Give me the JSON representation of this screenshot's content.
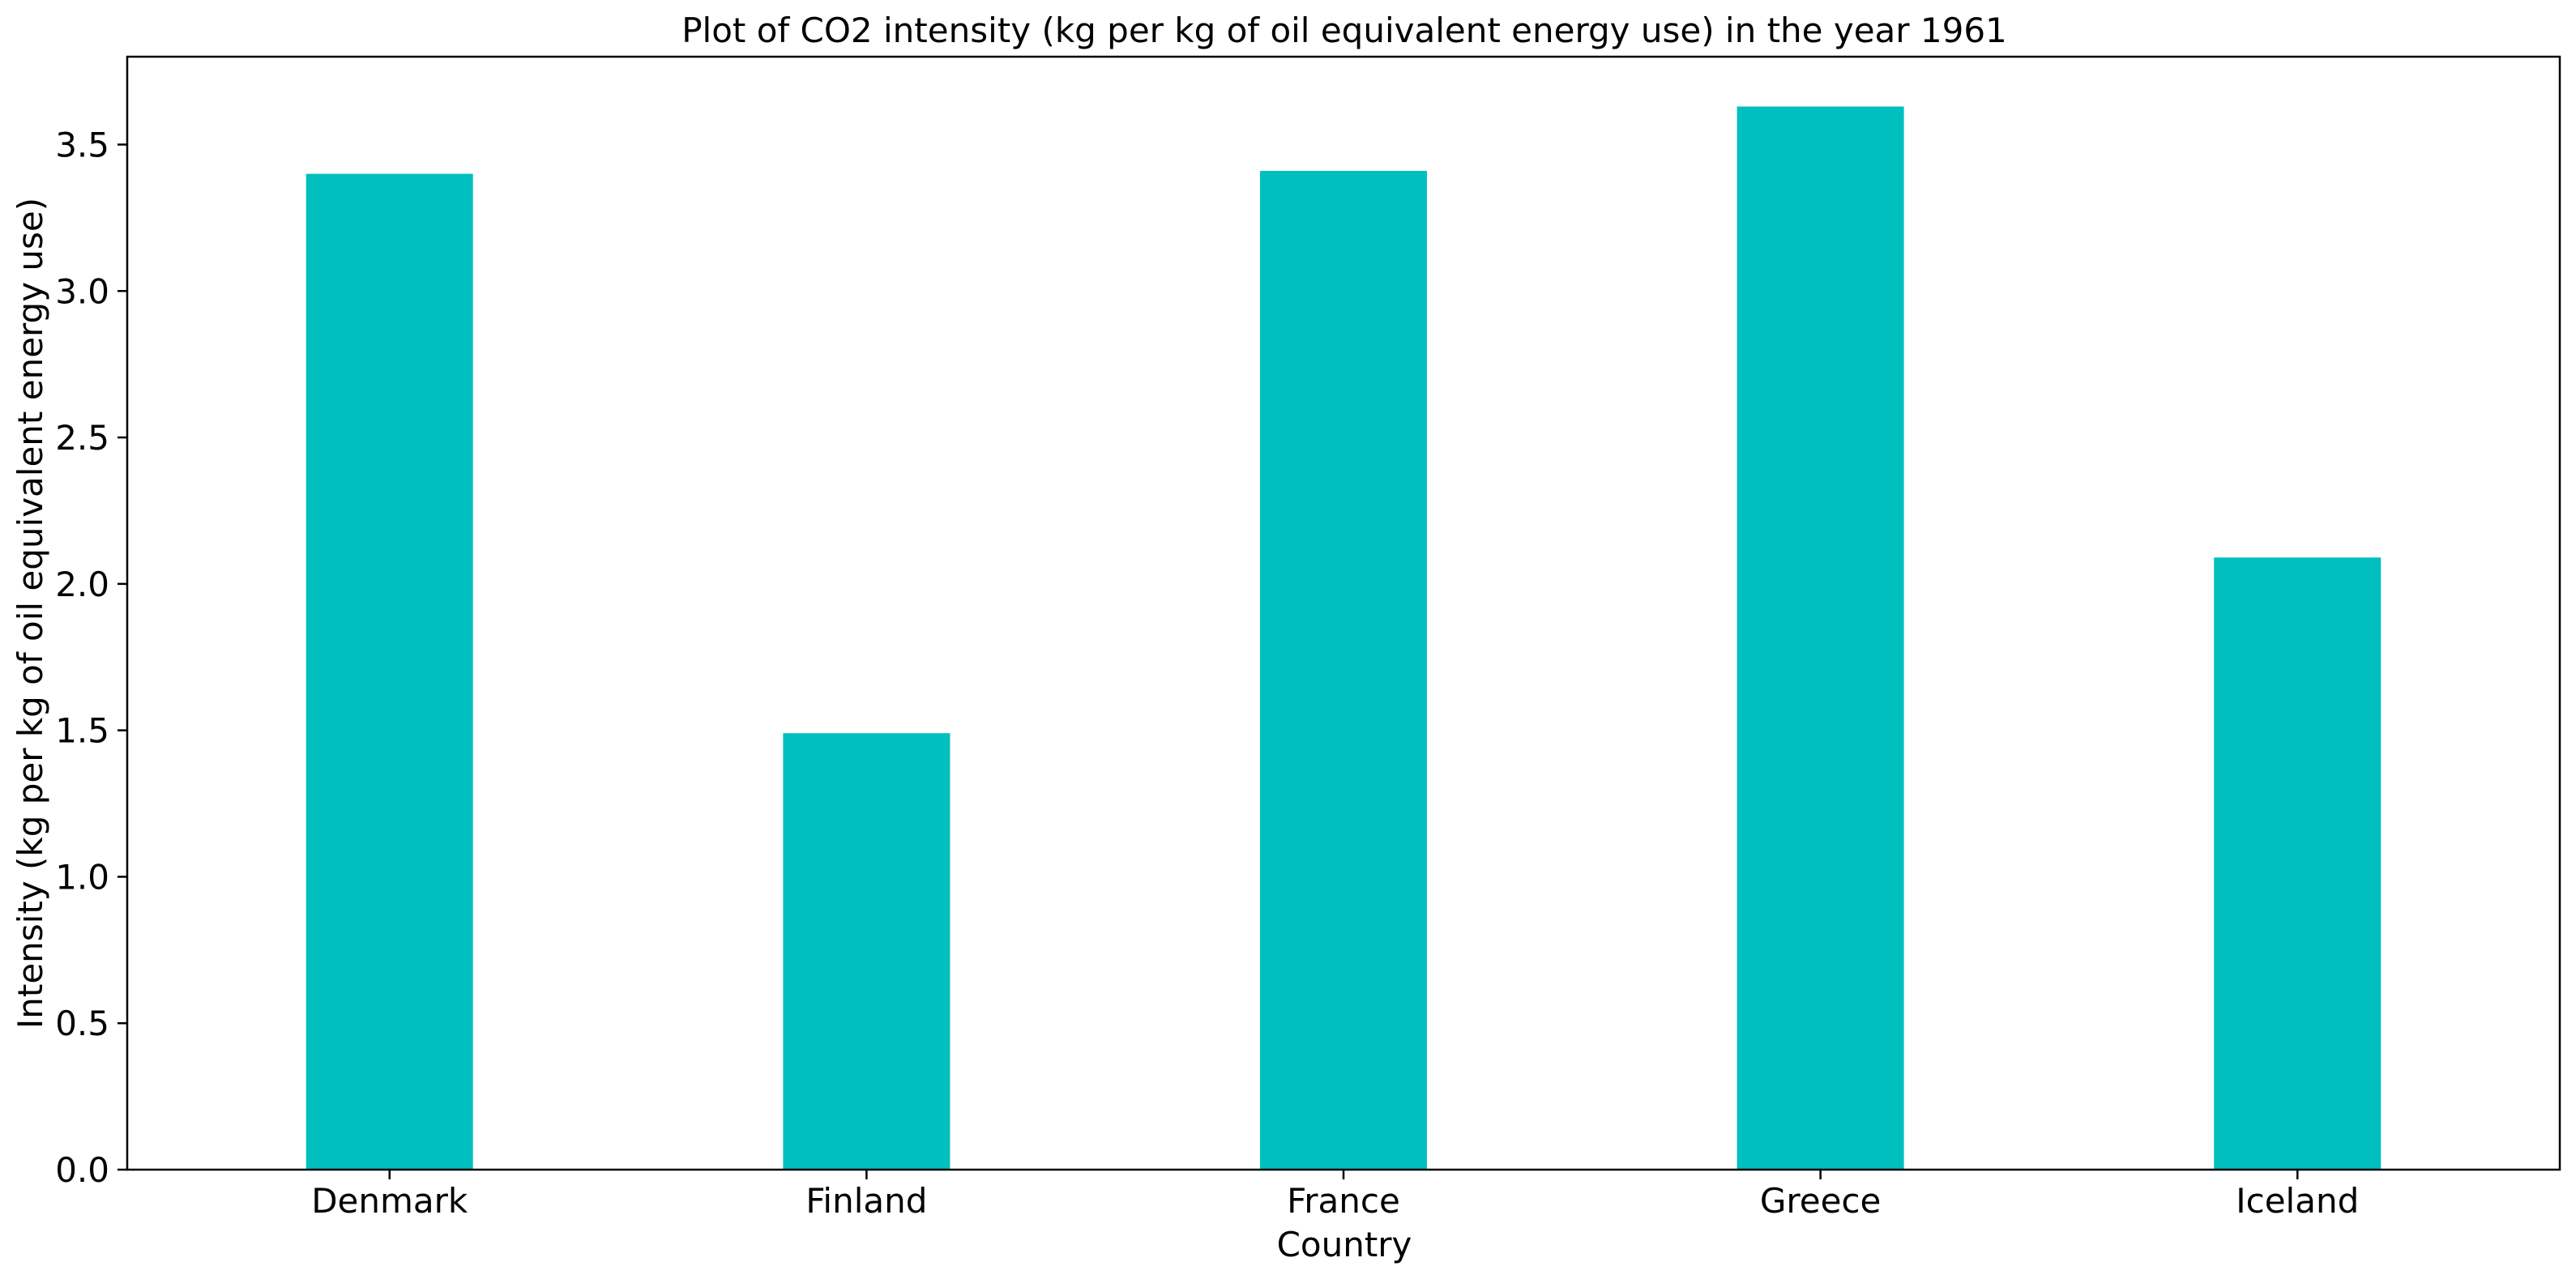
{
  "chart_data": {
    "type": "bar",
    "title": "Plot of CO2 intensity (kg per kg of oil equivalent energy use) in the year 1961",
    "xlabel": "Country",
    "ylabel": "Intensity (kg per kg of oil equivalent energy use)",
    "categories": [
      "Denmark",
      "Finland",
      "France",
      "Greece",
      "Iceland"
    ],
    "values": [
      3.4,
      1.49,
      3.41,
      3.63,
      2.09
    ],
    "ylim": [
      0,
      3.8
    ],
    "yticks": [
      "0.0",
      "0.5",
      "1.0",
      "1.5",
      "2.0",
      "2.5",
      "3.0",
      "3.5"
    ],
    "bar_color": "#00bfbf",
    "grid": false,
    "legend": "none"
  }
}
